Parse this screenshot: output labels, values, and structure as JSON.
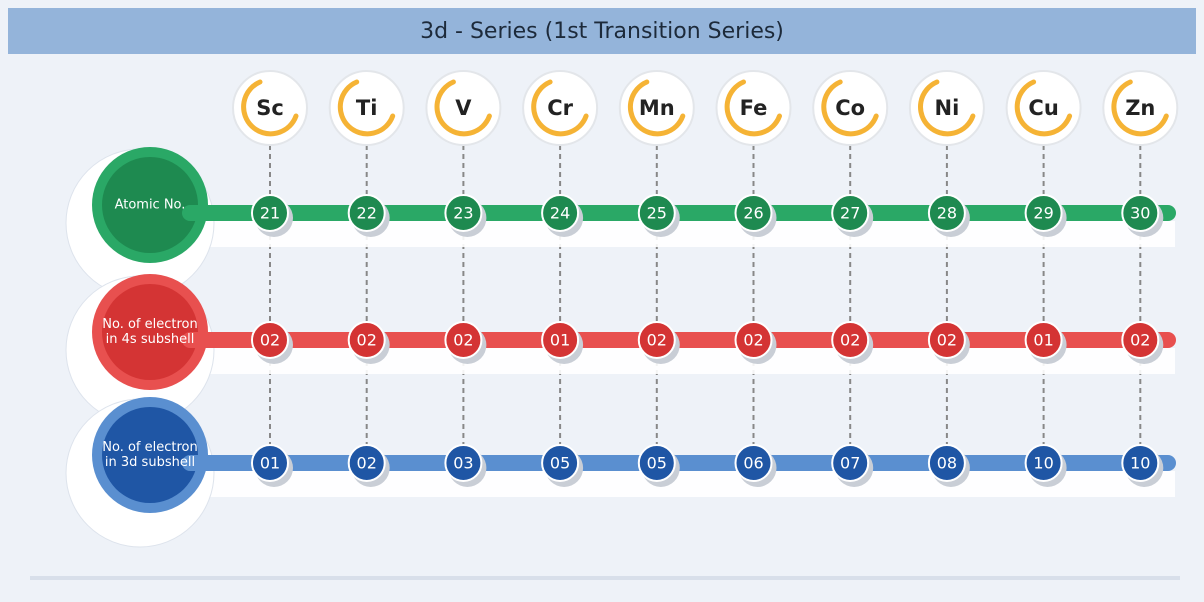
{
  "header": {
    "title": "3d - Series (1st Transition Series)"
  },
  "elements": [
    "Sc",
    "Ti",
    "V",
    "Cr",
    "Mn",
    "Fe",
    "Co",
    "Ni",
    "Cu",
    "Zn"
  ],
  "rows": [
    {
      "label": "Atomic No.",
      "color": "#2aa866",
      "dark": "#1e8a50",
      "values": [
        "21",
        "22",
        "23",
        "24",
        "25",
        "26",
        "27",
        "28",
        "29",
        "30"
      ]
    },
    {
      "label": "No. of electron in 4s subshell",
      "color": "#e8504f",
      "dark": "#d43434",
      "values": [
        "02",
        "02",
        "02",
        "01",
        "02",
        "02",
        "02",
        "02",
        "01",
        "02"
      ]
    },
    {
      "label": "No. of electron in 3d subshell",
      "color": "#5a8fd0",
      "dark": "#1f56a5",
      "values": [
        "01",
        "02",
        "03",
        "05",
        "05",
        "06",
        "07",
        "08",
        "10",
        "10"
      ]
    }
  ]
}
